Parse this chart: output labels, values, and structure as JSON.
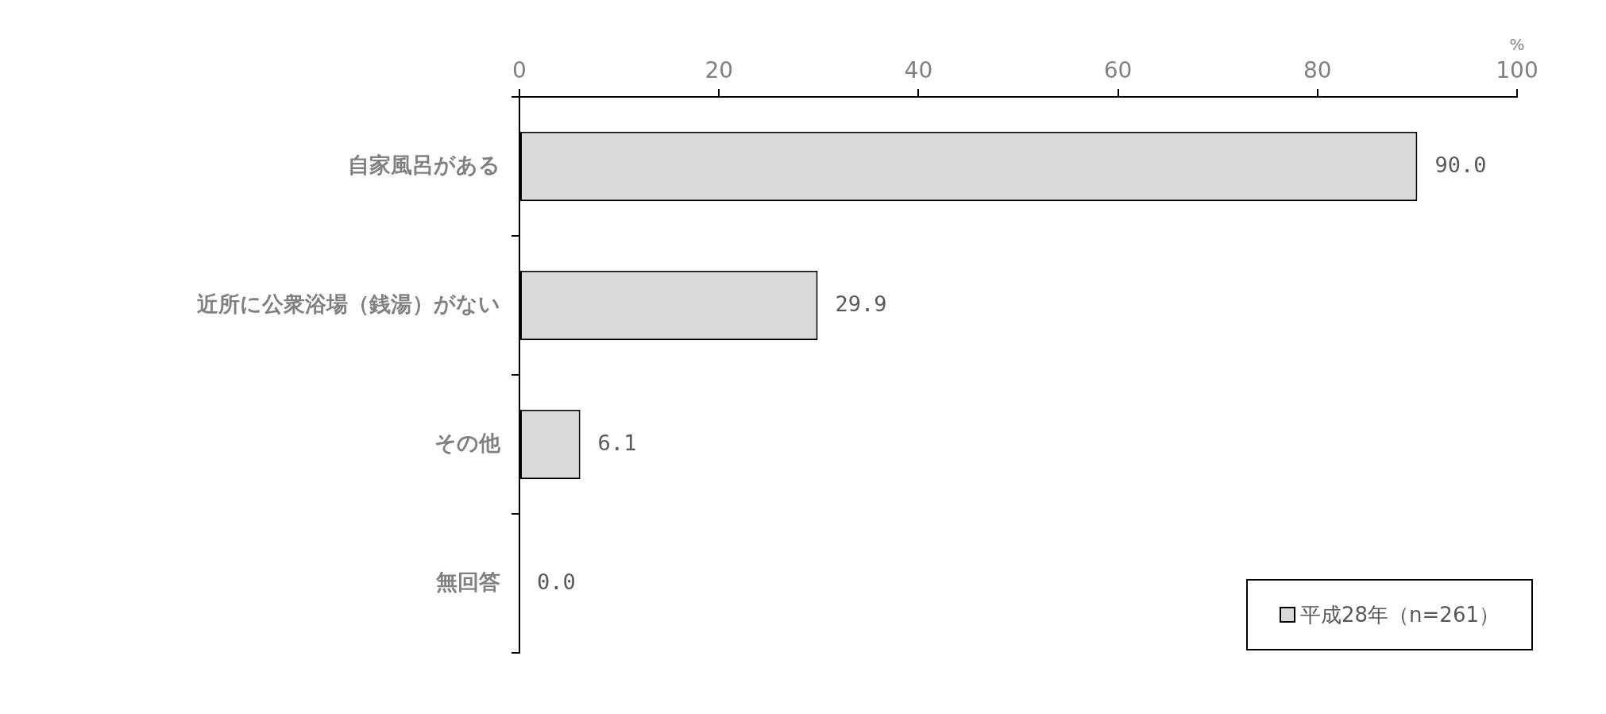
{
  "chart_data": {
    "type": "bar",
    "orientation": "horizontal",
    "xlabel": "%",
    "categories": [
      "自家風呂がある",
      "近所に公衆浴場（銭湯）がない",
      "その他",
      "無回答"
    ],
    "series": [
      {
        "name": "平成28年（n=261）",
        "color": "#d9d9d9",
        "values": [
          90.0,
          29.9,
          6.1,
          0.0
        ],
        "value_labels": [
          "90.0",
          "29.9",
          "6.1",
          "0.0"
        ]
      }
    ],
    "xlim": [
      0,
      100
    ],
    "xticks": [
      0,
      20,
      40,
      60,
      80,
      100
    ],
    "legend": "bottom right"
  }
}
